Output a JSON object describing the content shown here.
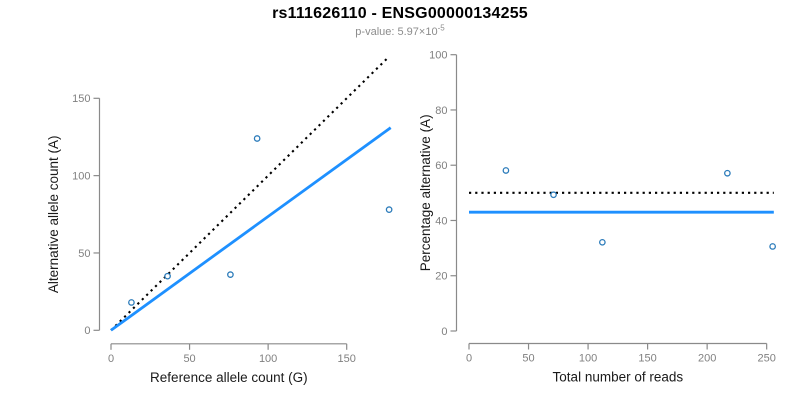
{
  "header": {
    "title": "rs111626110 - ENSG00000134255",
    "subtitle_prefix": "p-value: 5.97×10",
    "subtitle_exponent": "-5"
  },
  "colors": {
    "accent_blue": "#1E90FF",
    "point_blue": "#2b7bba",
    "axis_gray": "#8a8a8a",
    "tick_label_gray": "#808080",
    "line_black": "#000000"
  },
  "chart_data": [
    {
      "type": "scatter",
      "name": "allele-counts-scatter",
      "xlabel": "Reference allele count (G)",
      "ylabel": "Alternative allele count (A)",
      "xlim": [
        0,
        178
      ],
      "ylim": [
        0,
        178
      ],
      "x_ticks": [
        0,
        50,
        100,
        150
      ],
      "y_ticks": [
        0,
        50,
        100,
        150
      ],
      "grid": false,
      "legend": "none",
      "point_color": "#2b7bba",
      "points": [
        {
          "x": 13,
          "y": 18
        },
        {
          "x": 36,
          "y": 35
        },
        {
          "x": 76,
          "y": 36
        },
        {
          "x": 93,
          "y": 124
        },
        {
          "x": 177,
          "y": 78
        }
      ],
      "lines": [
        {
          "name": "identity-line",
          "style": "dotted",
          "color": "#000000",
          "x1": 0,
          "y1": 0,
          "x2": 177,
          "y2": 177
        },
        {
          "name": "fit-line",
          "style": "solid",
          "color": "#1E90FF",
          "x1": 0,
          "y1": 0,
          "x2": 178,
          "y2": 131
        }
      ]
    },
    {
      "type": "scatter",
      "name": "percentage-alternative-scatter",
      "xlabel": "Total number of reads",
      "ylabel": "Percentage alternative (A)",
      "xlim": [
        0,
        257
      ],
      "ylim": [
        0,
        100
      ],
      "x_ticks": [
        0,
        50,
        100,
        150,
        200,
        250
      ],
      "y_ticks": [
        0,
        20,
        40,
        60,
        80,
        100
      ],
      "grid": false,
      "legend": "none",
      "point_color": "#2b7bba",
      "points": [
        {
          "x": 31,
          "y": 58.1
        },
        {
          "x": 71,
          "y": 49.3
        },
        {
          "x": 112,
          "y": 32.1
        },
        {
          "x": 217,
          "y": 57.1
        },
        {
          "x": 255,
          "y": 30.6
        }
      ],
      "lines": [
        {
          "name": "fifty-percent-line",
          "style": "dotted",
          "color": "#000000",
          "x1": 0,
          "y1": 50,
          "x2": 256,
          "y2": 50
        },
        {
          "name": "mean-percentage-line",
          "style": "solid",
          "color": "#1E90FF",
          "x1": 0,
          "y1": 43,
          "x2": 256,
          "y2": 43
        }
      ]
    }
  ]
}
